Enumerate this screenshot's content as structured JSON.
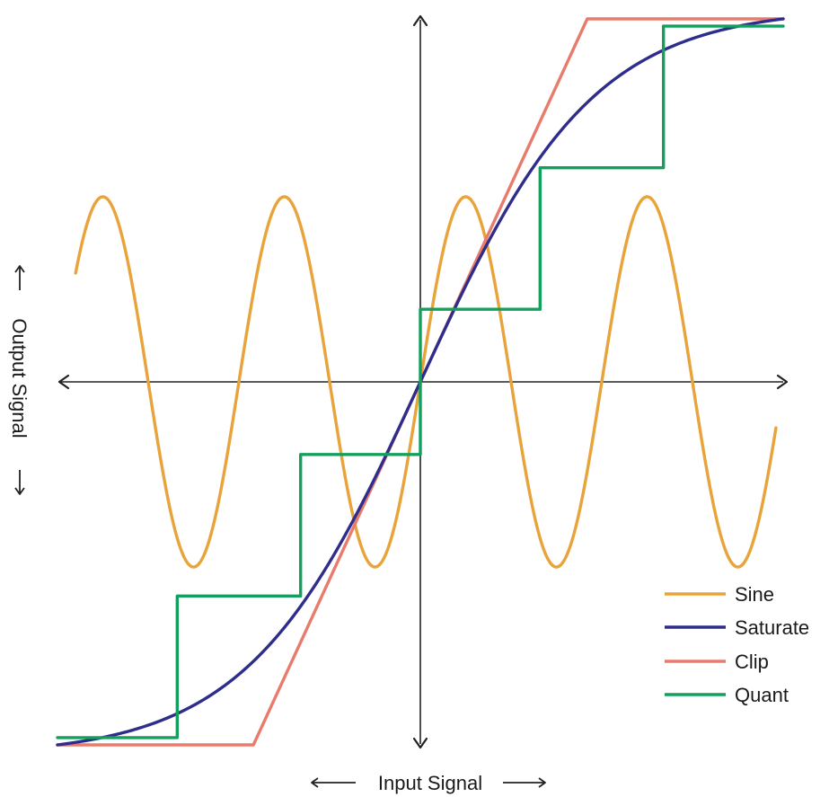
{
  "chart_data": {
    "type": "line",
    "title": "",
    "xlabel": "Input Signal",
    "ylabel": "Output Signal",
    "xlim": [
      -1,
      1
    ],
    "ylim": [
      -1,
      1
    ],
    "grid": false,
    "legend_position": "bottom-right",
    "series": [
      {
        "name": "Sine",
        "color": "#E8A33B",
        "function": "sine",
        "amplitude": 0.51,
        "periods": 4,
        "x_range": [
          -0.95,
          0.98
        ]
      },
      {
        "name": "Saturate",
        "color": "#2E2D8C",
        "function": "tanh",
        "x_range": [
          -1,
          1
        ],
        "x": [
          -1,
          -0.75,
          -0.5,
          -0.25,
          0,
          0.25,
          0.5,
          0.75,
          1
        ],
        "y": [
          -1.0,
          -0.95,
          -0.74,
          -0.42,
          0,
          0.42,
          0.74,
          0.95,
          1.0
        ]
      },
      {
        "name": "Clip",
        "color": "#E87B6B",
        "function": "clip",
        "x": [
          -1,
          -0.46,
          0.46,
          1
        ],
        "y": [
          -1,
          -1,
          1,
          1
        ]
      },
      {
        "name": "Quant",
        "color": "#12A05C",
        "function": "staircase",
        "x": [
          -1,
          -0.67,
          -0.67,
          -0.33,
          -0.33,
          0,
          0,
          0.33,
          0.33,
          0.67,
          0.67,
          1
        ],
        "y": [
          -0.98,
          -0.98,
          -0.59,
          -0.59,
          -0.2,
          -0.2,
          0.2,
          0.2,
          0.59,
          0.59,
          0.98,
          0.98
        ]
      }
    ]
  }
}
